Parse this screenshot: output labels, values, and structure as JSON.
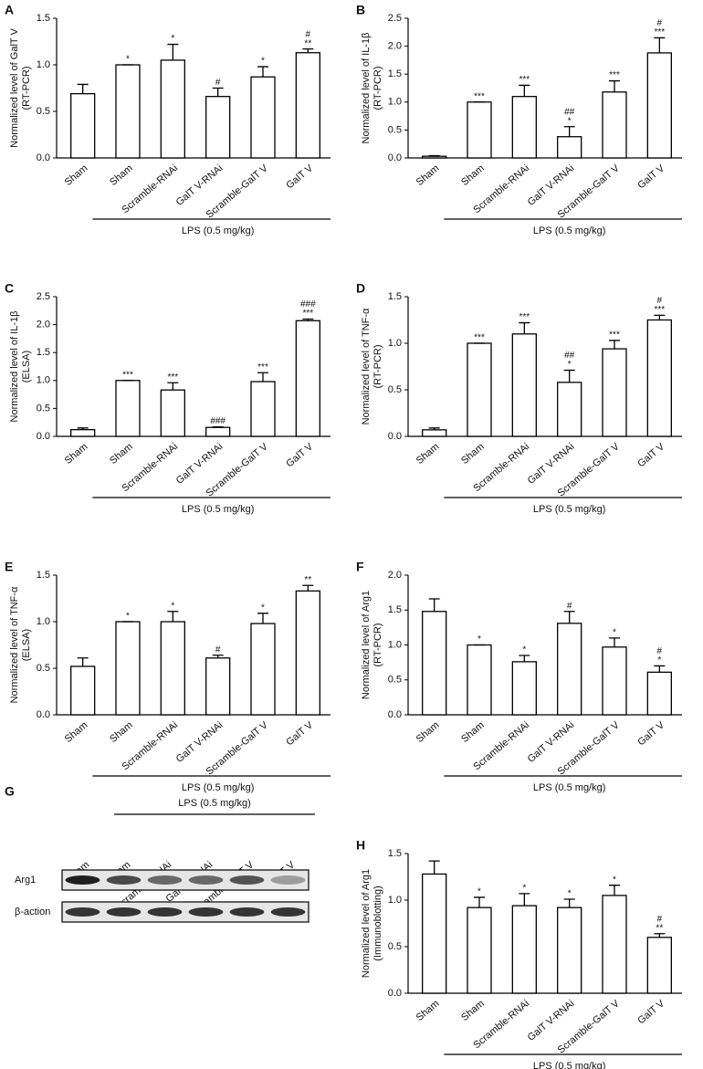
{
  "chart_data": [
    {
      "type": "bar",
      "panel": "A",
      "y_label": [
        "Normalized level of GalT V",
        "(RT-PCR)"
      ],
      "categories": [
        "Sham",
        "Sham",
        "Scramble-RNAi",
        "GalT V-RNAi",
        "Scramble-GalT V",
        "GalT V"
      ],
      "values": [
        0.69,
        1.0,
        1.05,
        0.66,
        0.87,
        1.13
      ],
      "errors": [
        0.1,
        0,
        0.17,
        0.09,
        0.11,
        0.04
      ],
      "annotations": [
        [],
        [
          "*"
        ],
        [
          "*"
        ],
        [
          "#"
        ],
        [
          "*"
        ],
        [
          "#",
          "**"
        ]
      ],
      "group_label": "LPS (0.5 mg/kg)",
      "ylim": [
        0,
        1.5
      ],
      "yticks": [
        {
          "value": 0,
          "label": "0.0"
        },
        {
          "value": 0.5,
          "label": "0.5"
        },
        {
          "value": 1,
          "label": "1.0"
        },
        {
          "value": 1.5,
          "label": "1.5"
        }
      ]
    },
    {
      "type": "bar",
      "panel": "B",
      "y_label": [
        "Normalized level of IL-1β",
        "(RT-PCR)"
      ],
      "categories": [
        "Sham",
        "Sham",
        "Scramble-RNAi",
        "GalT V-RNAi",
        "Scramble-GalT V",
        "GalT V"
      ],
      "values": [
        0.03,
        1.0,
        1.1,
        0.38,
        1.18,
        1.88
      ],
      "errors": [
        0.01,
        0,
        0.2,
        0.18,
        0.2,
        0.27
      ],
      "annotations": [
        [],
        [
          "***"
        ],
        [
          "***"
        ],
        [
          "##",
          "*"
        ],
        [
          "***"
        ],
        [
          "#",
          "***"
        ]
      ],
      "group_label": "LPS (0.5 mg/kg)",
      "ylim": [
        0,
        2.5
      ],
      "yticks": [
        {
          "value": 0,
          "label": "0.0"
        },
        {
          "value": 0.5,
          "label": "0.5"
        },
        {
          "value": 1,
          "label": "1.0"
        },
        {
          "value": 1.5,
          "label": "1.5"
        },
        {
          "value": 2,
          "label": "2.0"
        },
        {
          "value": 2.5,
          "label": "2.5"
        }
      ]
    },
    {
      "type": "bar",
      "panel": "C",
      "y_label": [
        "Normalized level of IL-1β",
        "(ELSA)"
      ],
      "categories": [
        "Sham",
        "Sham",
        "Scramble-RNAi",
        "GalT V-RNAi",
        "Scramble-GalT V",
        "GalT V"
      ],
      "values": [
        0.12,
        1.0,
        0.83,
        0.16,
        0.98,
        2.07
      ],
      "errors": [
        0.03,
        0,
        0.13,
        0.01,
        0.16,
        0.03
      ],
      "annotations": [
        [],
        [
          "***"
        ],
        [
          "***"
        ],
        [
          "###"
        ],
        [
          "***"
        ],
        [
          "###",
          "***"
        ]
      ],
      "group_label": "LPS (0.5 mg/kg)",
      "ylim": [
        0,
        2.5
      ],
      "yticks": [
        {
          "value": 0,
          "label": "0.0"
        },
        {
          "value": 0.5,
          "label": "0.5"
        },
        {
          "value": 1,
          "label": "1.0"
        },
        {
          "value": 1.5,
          "label": "1.5"
        },
        {
          "value": 2,
          "label": "2.0"
        },
        {
          "value": 2.5,
          "label": "2.5"
        }
      ]
    },
    {
      "type": "bar",
      "panel": "D",
      "y_label": [
        "Normalized level of TNF-α",
        "(RT-PCR)"
      ],
      "categories": [
        "Sham",
        "Sham",
        "Scramble-RNAi",
        "GalT V-RNAi",
        "Scramble-GalT V",
        "GalT V"
      ],
      "values": [
        0.07,
        1.0,
        1.1,
        0.58,
        0.94,
        1.25
      ],
      "errors": [
        0.02,
        0,
        0.12,
        0.13,
        0.09,
        0.05
      ],
      "annotations": [
        [],
        [
          "***"
        ],
        [
          "***"
        ],
        [
          "##",
          "*"
        ],
        [
          "***"
        ],
        [
          "#",
          "***"
        ]
      ],
      "group_label": "LPS (0.5 mg/kg)",
      "ylim": [
        0,
        1.5
      ],
      "yticks": [
        {
          "value": 0,
          "label": "0.0"
        },
        {
          "value": 0.5,
          "label": "0.5"
        },
        {
          "value": 1,
          "label": "1.0"
        },
        {
          "value": 1.5,
          "label": "1.5"
        }
      ]
    },
    {
      "type": "bar",
      "panel": "E",
      "y_label": [
        "Normalized level of TNF-α",
        "(ELSA)"
      ],
      "categories": [
        "Sham",
        "Sham",
        "Scramble-RNAi",
        "GalT V-RNAi",
        "Scramble-GalT V",
        "GalT V"
      ],
      "values": [
        0.52,
        1.0,
        1.0,
        0.61,
        0.98,
        1.33
      ],
      "errors": [
        0.09,
        0,
        0.11,
        0.03,
        0.11,
        0.06
      ],
      "annotations": [
        [],
        [
          "*"
        ],
        [
          "*"
        ],
        [
          "#"
        ],
        [
          "*"
        ],
        [
          "**"
        ]
      ],
      "group_label": "LPS (0.5 mg/kg)",
      "ylim": [
        0,
        1.5
      ],
      "yticks": [
        {
          "value": 0,
          "label": "0.0"
        },
        {
          "value": 0.5,
          "label": "0.5"
        },
        {
          "value": 1,
          "label": "1.0"
        },
        {
          "value": 1.5,
          "label": "1.5"
        }
      ]
    },
    {
      "type": "bar",
      "panel": "F",
      "y_label": [
        "Normalized level of Arg1",
        "(RT-PCR)"
      ],
      "categories": [
        "Sham",
        "Sham",
        "Scramble-RNAi",
        "GalT V-RNAi",
        "Scramble-GalT V",
        "GalT V"
      ],
      "values": [
        1.48,
        1.0,
        0.76,
        1.31,
        0.97,
        0.61
      ],
      "errors": [
        0.18,
        0,
        0.09,
        0.17,
        0.13,
        0.09
      ],
      "annotations": [
        [],
        [
          "*"
        ],
        [
          "*"
        ],
        [
          "#"
        ],
        [
          "*"
        ],
        [
          "#",
          "*"
        ]
      ],
      "group_label": "LPS (0.5 mg/kg)",
      "ylim": [
        0,
        2
      ],
      "yticks": [
        {
          "value": 0,
          "label": "0.0"
        },
        {
          "value": 0.5,
          "label": "0.5"
        },
        {
          "value": 1,
          "label": "1.0"
        },
        {
          "value": 1.5,
          "label": "1.5"
        },
        {
          "value": 2,
          "label": "2.0"
        }
      ]
    },
    {
      "type": "blot",
      "panel": "G",
      "categories": [
        "Sham",
        "Sham",
        "Scramble-RNAi",
        "GalT V-RNAi",
        "Scramble-GalT V",
        "GalT V"
      ],
      "rows": [
        "Arg1",
        "β-action"
      ],
      "group_label": "LPS (0.5 mg/kg)"
    },
    {
      "type": "bar",
      "panel": "H",
      "y_label": [
        "Normalized level of Arg1",
        "(Immunoblotting)"
      ],
      "categories": [
        "Sham",
        "Sham",
        "Scramble-RNAi",
        "GalT V-RNAi",
        "Scramble-GalT V",
        "GalT V"
      ],
      "values": [
        1.28,
        0.92,
        0.94,
        0.92,
        1.05,
        0.6
      ],
      "errors": [
        0.14,
        0.11,
        0.13,
        0.09,
        0.11,
        0.04
      ],
      "annotations": [
        [],
        [
          "*"
        ],
        [
          "*"
        ],
        [
          "*"
        ],
        [
          "*"
        ],
        [
          "#",
          "**"
        ]
      ],
      "group_label": "LPS (0.5 mg/kg)",
      "ylim": [
        0,
        1.5
      ],
      "yticks": [
        {
          "value": 0,
          "label": "0.0"
        },
        {
          "value": 0.5,
          "label": "0.5"
        },
        {
          "value": 1,
          "label": "1.0"
        },
        {
          "value": 1.5,
          "label": "1.5"
        }
      ]
    }
  ]
}
